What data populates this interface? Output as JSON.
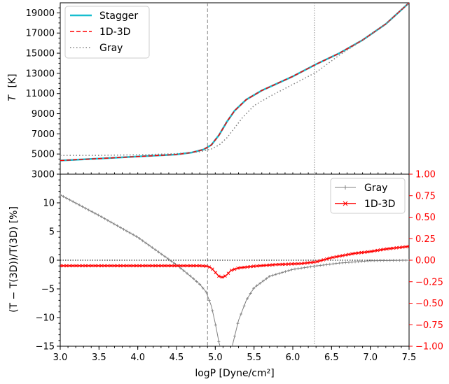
{
  "chart_data": [
    {
      "type": "line",
      "panel": "top",
      "ylabel_var": "T",
      "ylabel_unit": "[K]",
      "xlim": [
        3.0,
        7.5
      ],
      "ylim": [
        3000,
        20000
      ],
      "yticks": [
        3000,
        5000,
        7000,
        9000,
        11000,
        13000,
        15000,
        17000,
        19000
      ],
      "vlines": [
        4.9,
        6.28
      ],
      "legend_position": "top-left",
      "series": [
        {
          "name": "Stagger",
          "style": "solid",
          "color": "#17becf",
          "x": [
            3.0,
            3.5,
            4.0,
            4.5,
            4.7,
            4.85,
            4.95,
            5.05,
            5.15,
            5.25,
            5.4,
            5.6,
            5.8,
            6.0,
            6.3,
            6.6,
            6.9,
            7.2,
            7.5
          ],
          "y": [
            4350,
            4550,
            4750,
            4950,
            5150,
            5450,
            5900,
            6900,
            8200,
            9300,
            10400,
            11300,
            12000,
            12700,
            13900,
            15000,
            16300,
            17900,
            20000
          ]
        },
        {
          "name": "1D-3D",
          "style": "dashed",
          "color": "#ff0000",
          "x": [
            3.0,
            3.5,
            4.0,
            4.5,
            4.7,
            4.85,
            4.95,
            5.05,
            5.15,
            5.25,
            5.4,
            5.6,
            5.8,
            6.0,
            6.3,
            6.6,
            6.9,
            7.2,
            7.5
          ],
          "y": [
            4350,
            4550,
            4750,
            4950,
            5150,
            5450,
            5900,
            6900,
            8200,
            9300,
            10400,
            11300,
            12000,
            12700,
            13900,
            15000,
            16300,
            17900,
            20000
          ]
        },
        {
          "name": "Gray",
          "style": "dotted",
          "color": "#808080",
          "x": [
            3.0,
            3.5,
            4.0,
            4.5,
            4.8,
            4.95,
            5.05,
            5.15,
            5.25,
            5.35,
            5.5,
            5.7,
            5.9,
            6.1,
            6.3,
            6.6,
            6.9,
            7.2,
            7.5
          ],
          "y": [
            4860,
            4870,
            4920,
            5030,
            5220,
            5500,
            5900,
            6600,
            7600,
            8600,
            9800,
            10700,
            11500,
            12300,
            13100,
            14800,
            16300,
            17900,
            20000
          ]
        }
      ]
    },
    {
      "type": "line",
      "panel": "bottom",
      "ylabel": "(T − T(3D))/T(3D)  [%]",
      "xlabel": "logP  [Dyne/cm²]",
      "xlim": [
        3.0,
        7.5
      ],
      "xticks": [
        "3.0",
        "3.5",
        "4.0",
        "4.5",
        "5.0",
        "5.5",
        "6.0",
        "6.5",
        "7.0",
        "7.5"
      ],
      "ylim": [
        -15,
        15
      ],
      "yticks": [
        -15,
        -10,
        -5,
        0,
        5,
        10
      ],
      "ylim_right": [
        -1.0,
        1.0
      ],
      "yticks_right": [
        "−1.00",
        "−0.75",
        "−0.50",
        "−0.25",
        "0.00",
        "0.25",
        "0.50",
        "0.75",
        "1.00"
      ],
      "hline": 0,
      "vlines": [
        4.9,
        6.28
      ],
      "legend_position": "top-right",
      "series": [
        {
          "name": "Gray",
          "axis": "left",
          "marker": "+",
          "color": "#808080",
          "x": [
            3.0,
            3.5,
            4.0,
            4.5,
            4.7,
            4.8,
            4.88,
            4.95,
            5.0,
            5.05,
            5.1,
            5.2,
            5.3,
            5.4,
            5.5,
            5.7,
            6.0,
            6.3,
            6.6,
            7.0,
            7.5
          ],
          "y": [
            11.4,
            7.8,
            4.0,
            -0.8,
            -3.0,
            -4.2,
            -5.5,
            -8.0,
            -11.0,
            -14.5,
            -16.5,
            -16.0,
            -10.5,
            -7.0,
            -4.8,
            -2.8,
            -1.6,
            -1.0,
            -0.5,
            -0.1,
            0.0
          ]
        },
        {
          "name": "1D-3D",
          "axis": "right",
          "marker": "x",
          "color": "#ff0000",
          "x": [
            3.0,
            3.5,
            4.0,
            4.5,
            4.8,
            4.9,
            4.95,
            5.0,
            5.05,
            5.1,
            5.15,
            5.2,
            5.3,
            5.5,
            5.8,
            6.1,
            6.3,
            6.5,
            6.8,
            7.0,
            7.2,
            7.5
          ],
          "y": [
            -0.065,
            -0.065,
            -0.065,
            -0.065,
            -0.065,
            -0.07,
            -0.09,
            -0.14,
            -0.19,
            -0.2,
            -0.17,
            -0.12,
            -0.09,
            -0.07,
            -0.05,
            -0.04,
            -0.02,
            0.03,
            0.08,
            0.1,
            0.13,
            0.16
          ]
        }
      ]
    }
  ]
}
